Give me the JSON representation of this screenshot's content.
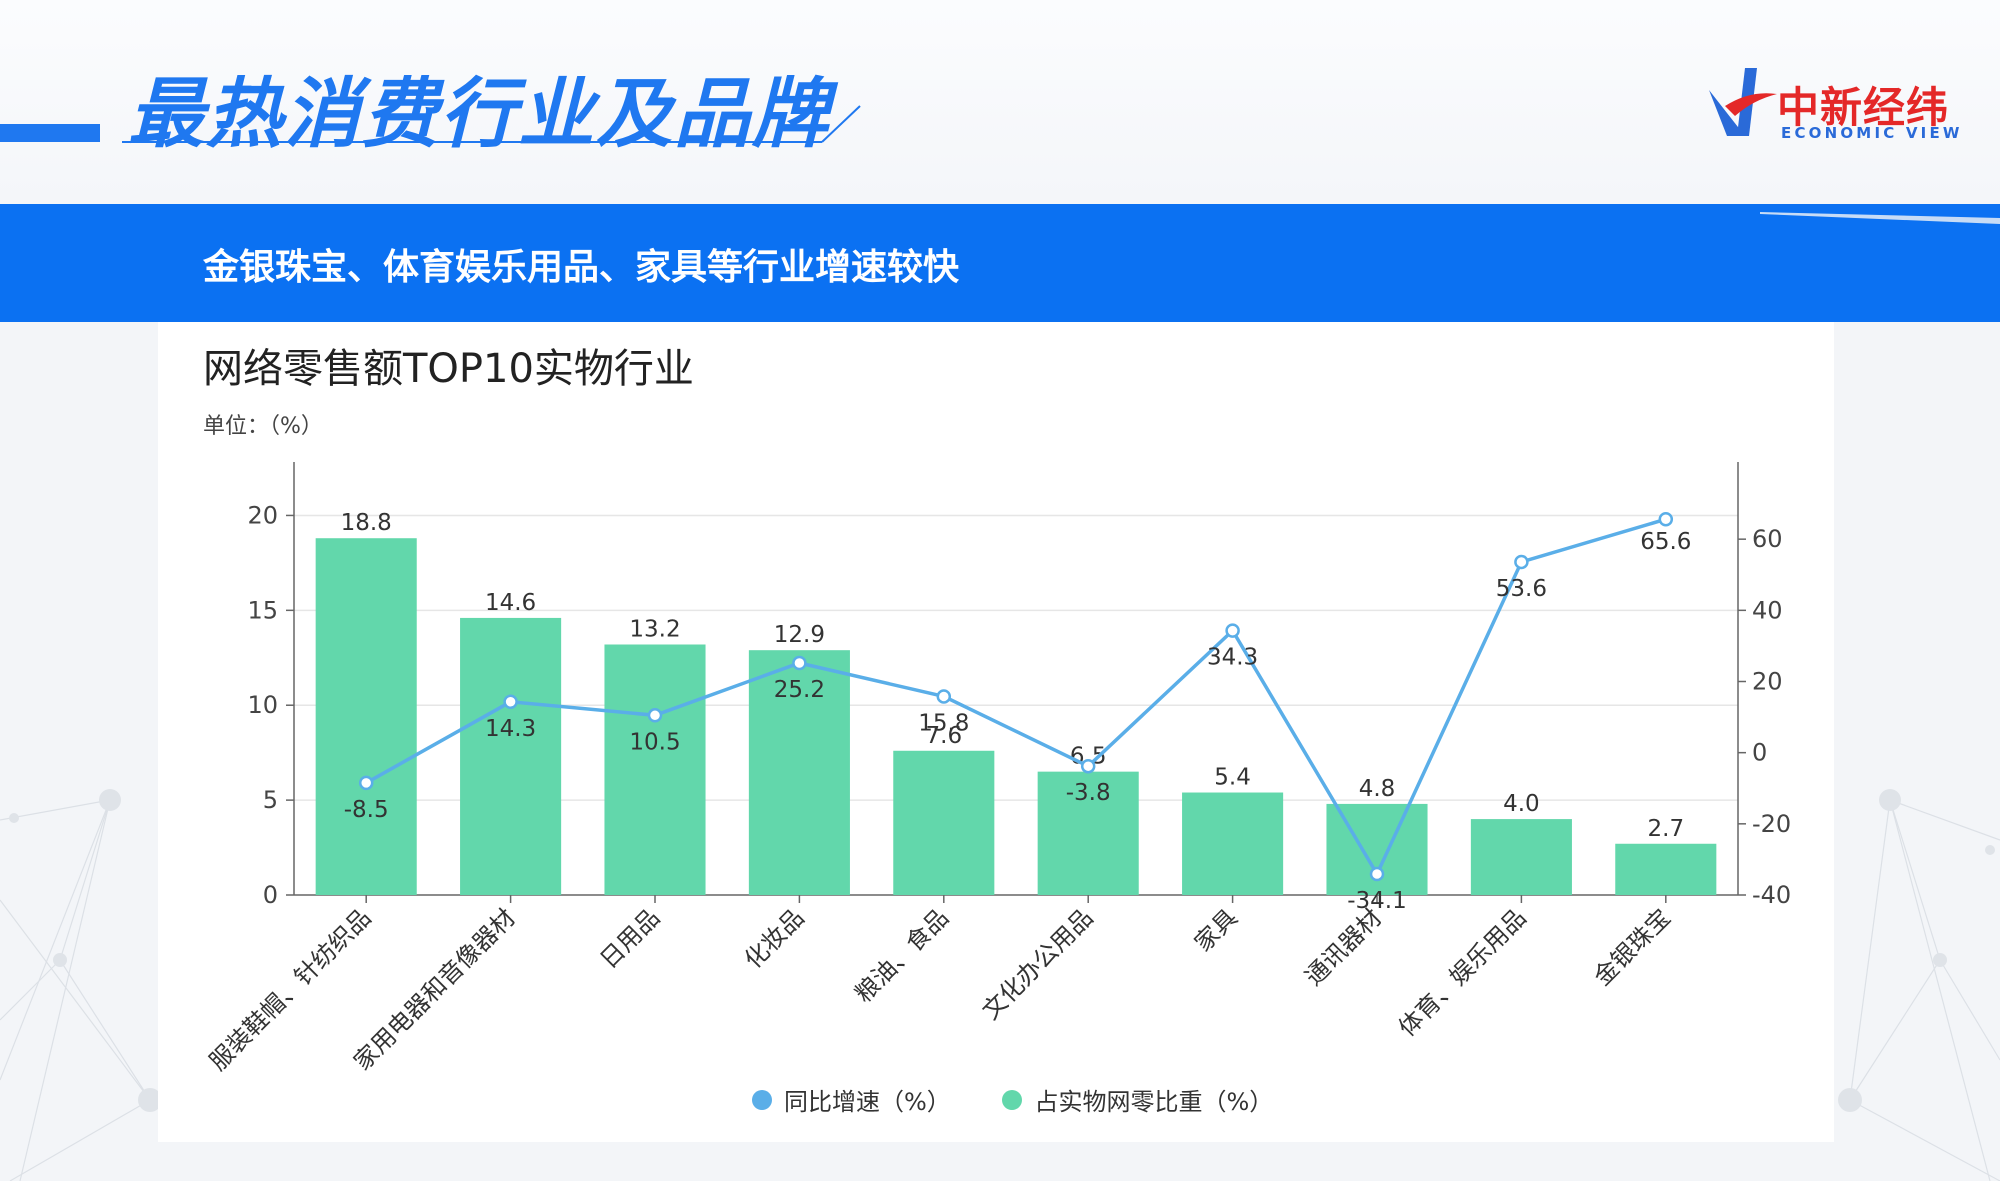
{
  "slide": {
    "title": "最热消费行业及品牌",
    "logo_cn": "中新经纬",
    "logo_en": "ECONOMIC VIEW",
    "banner": "金银珠宝、体育娱乐用品、家具等行业增速较快",
    "accent_color": "#1f78f0",
    "banner_color": "#0b71f2",
    "logo_color": "#e42828"
  },
  "chart_data": {
    "type": "bar",
    "title": "网络零售额TOP10实物行业",
    "unit": "单位：（%）",
    "categories": [
      "服装鞋帽、针纺织品",
      "家用电器和音像器材",
      "日用品",
      "化妆品",
      "粮油、食品",
      "文化办公用品",
      "家具",
      "通讯器材",
      "体育、娱乐用品",
      "金银珠宝"
    ],
    "series": [
      {
        "name": "同比增速（%）",
        "type": "line",
        "axis": "right",
        "color": "#5aaee8",
        "values": [
          -8.5,
          14.3,
          10.5,
          25.2,
          15.8,
          -3.8,
          34.3,
          -34.1,
          53.6,
          65.6
        ]
      },
      {
        "name": "占实物网零比重（%）",
        "type": "bar",
        "axis": "left",
        "color": "#62d7ab",
        "values": [
          18.8,
          14.6,
          13.2,
          12.9,
          7.6,
          6.5,
          5.4,
          4.8,
          4.0,
          2.7
        ]
      }
    ],
    "y_left": {
      "ticks": [
        0,
        5,
        10,
        15,
        20
      ],
      "range": [
        0,
        22.5
      ]
    },
    "y_right": {
      "ticks": [
        -40,
        -20,
        0,
        20,
        40,
        60
      ],
      "range": [
        -40,
        80
      ]
    },
    "legend_position": "bottom",
    "grid": true
  }
}
